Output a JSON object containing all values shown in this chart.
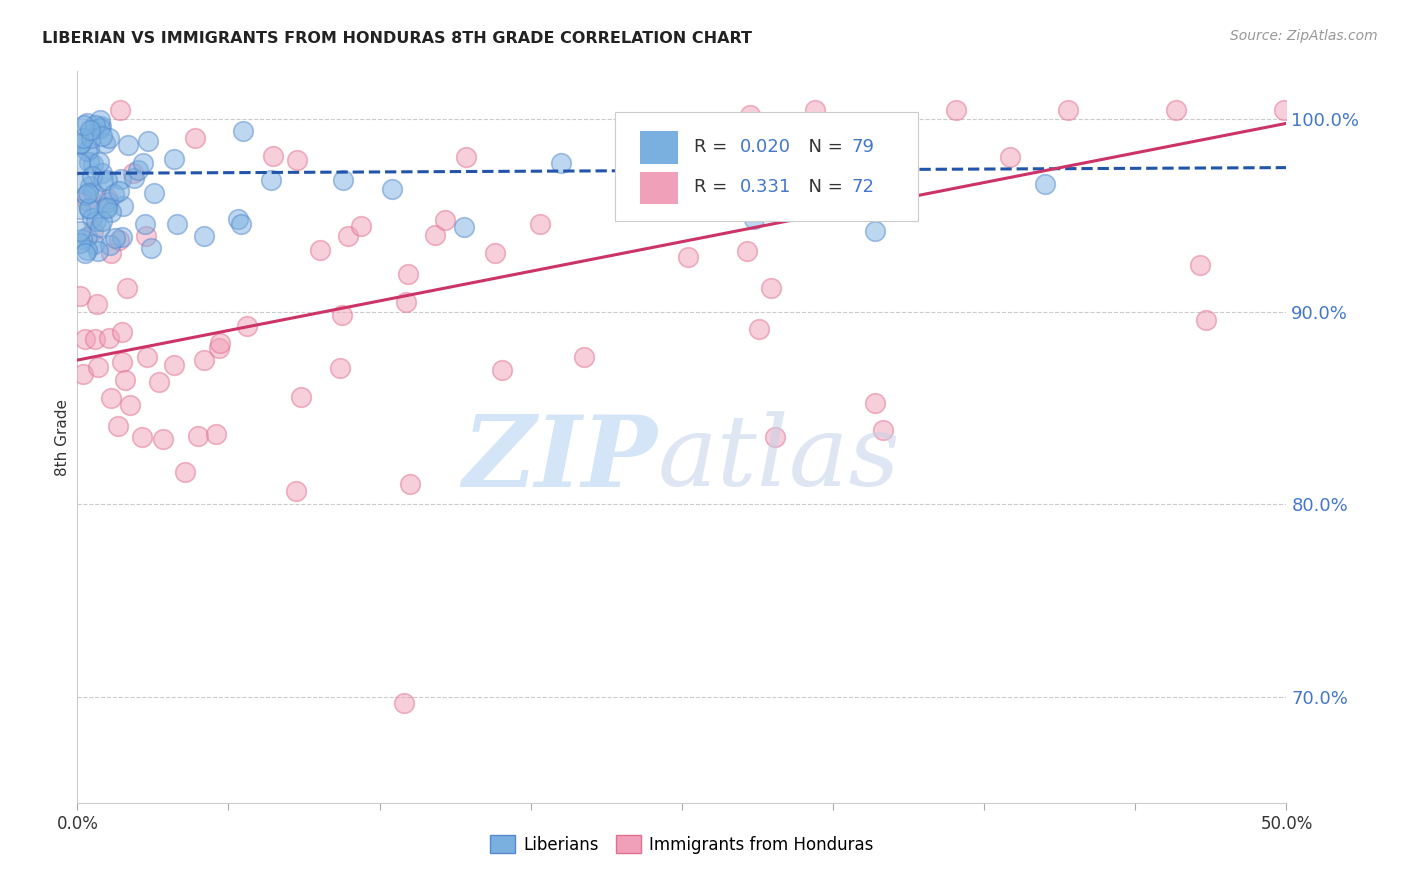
{
  "title": "LIBERIAN VS IMMIGRANTS FROM HONDURAS 8TH GRADE CORRELATION CHART",
  "source": "Source: ZipAtlas.com",
  "ylabel": "8th Grade",
  "xlim": [
    0.0,
    0.5
  ],
  "ylim": [
    0.645,
    1.025
  ],
  "yticks": [
    0.7,
    0.8,
    0.9,
    1.0
  ],
  "ytick_labels": [
    "70.0%",
    "80.0%",
    "90.0%",
    "100.0%"
  ],
  "background_color": "#ffffff",
  "grid_color": "#cccccc",
  "blue_dot_face": "#7ab0e0",
  "blue_dot_edge": "#5588cc",
  "pink_dot_face": "#f0a0b8",
  "pink_dot_edge": "#e07090",
  "blue_line_color": "#2255aa",
  "pink_line_color": "#cc3366",
  "legend_R_blue": "0.020",
  "legend_N_blue": "79",
  "legend_R_pink": "0.331",
  "legend_N_pink": "72",
  "axis_text_color": "#4477cc",
  "title_color": "#222222",
  "source_color": "#999999",
  "ylabel_color": "#333333"
}
